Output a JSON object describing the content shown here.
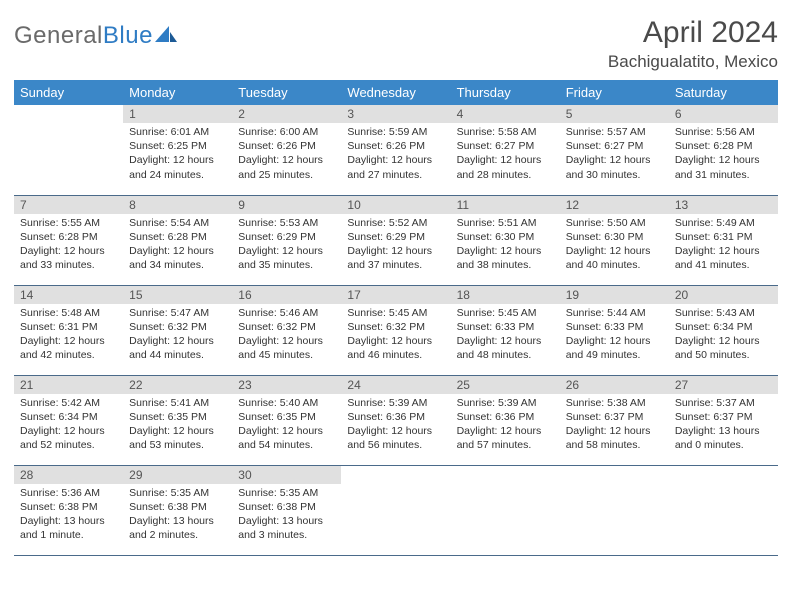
{
  "logo": {
    "text1": "General",
    "text2": "Blue"
  },
  "title": "April 2024",
  "subtitle": "Bachigualatito, Mexico",
  "colors": {
    "header_bg": "#3b87c8",
    "header_text": "#ffffff",
    "daynum_bg": "#e0e0e0",
    "daynum_text": "#555555",
    "cell_text": "#333333",
    "row_divider": "#4a6a8a",
    "brand_gray": "#6a6a6a",
    "brand_blue": "#2f7cc4",
    "title_color": "#4a4a4a",
    "background": "#ffffff"
  },
  "typography": {
    "title_fontsize": 30,
    "subtitle_fontsize": 17,
    "header_fontsize": 13,
    "daynum_fontsize": 12,
    "cell_fontsize": 10.5,
    "logo_fontsize": 24
  },
  "weekdays": [
    "Sunday",
    "Monday",
    "Tuesday",
    "Wednesday",
    "Thursday",
    "Friday",
    "Saturday"
  ],
  "weeks": [
    [
      null,
      {
        "d": "1",
        "sunrise": "Sunrise: 6:01 AM",
        "sunset": "Sunset: 6:25 PM",
        "daylight": "Daylight: 12 hours and 24 minutes."
      },
      {
        "d": "2",
        "sunrise": "Sunrise: 6:00 AM",
        "sunset": "Sunset: 6:26 PM",
        "daylight": "Daylight: 12 hours and 25 minutes."
      },
      {
        "d": "3",
        "sunrise": "Sunrise: 5:59 AM",
        "sunset": "Sunset: 6:26 PM",
        "daylight": "Daylight: 12 hours and 27 minutes."
      },
      {
        "d": "4",
        "sunrise": "Sunrise: 5:58 AM",
        "sunset": "Sunset: 6:27 PM",
        "daylight": "Daylight: 12 hours and 28 minutes."
      },
      {
        "d": "5",
        "sunrise": "Sunrise: 5:57 AM",
        "sunset": "Sunset: 6:27 PM",
        "daylight": "Daylight: 12 hours and 30 minutes."
      },
      {
        "d": "6",
        "sunrise": "Sunrise: 5:56 AM",
        "sunset": "Sunset: 6:28 PM",
        "daylight": "Daylight: 12 hours and 31 minutes."
      }
    ],
    [
      {
        "d": "7",
        "sunrise": "Sunrise: 5:55 AM",
        "sunset": "Sunset: 6:28 PM",
        "daylight": "Daylight: 12 hours and 33 minutes."
      },
      {
        "d": "8",
        "sunrise": "Sunrise: 5:54 AM",
        "sunset": "Sunset: 6:28 PM",
        "daylight": "Daylight: 12 hours and 34 minutes."
      },
      {
        "d": "9",
        "sunrise": "Sunrise: 5:53 AM",
        "sunset": "Sunset: 6:29 PM",
        "daylight": "Daylight: 12 hours and 35 minutes."
      },
      {
        "d": "10",
        "sunrise": "Sunrise: 5:52 AM",
        "sunset": "Sunset: 6:29 PM",
        "daylight": "Daylight: 12 hours and 37 minutes."
      },
      {
        "d": "11",
        "sunrise": "Sunrise: 5:51 AM",
        "sunset": "Sunset: 6:30 PM",
        "daylight": "Daylight: 12 hours and 38 minutes."
      },
      {
        "d": "12",
        "sunrise": "Sunrise: 5:50 AM",
        "sunset": "Sunset: 6:30 PM",
        "daylight": "Daylight: 12 hours and 40 minutes."
      },
      {
        "d": "13",
        "sunrise": "Sunrise: 5:49 AM",
        "sunset": "Sunset: 6:31 PM",
        "daylight": "Daylight: 12 hours and 41 minutes."
      }
    ],
    [
      {
        "d": "14",
        "sunrise": "Sunrise: 5:48 AM",
        "sunset": "Sunset: 6:31 PM",
        "daylight": "Daylight: 12 hours and 42 minutes."
      },
      {
        "d": "15",
        "sunrise": "Sunrise: 5:47 AM",
        "sunset": "Sunset: 6:32 PM",
        "daylight": "Daylight: 12 hours and 44 minutes."
      },
      {
        "d": "16",
        "sunrise": "Sunrise: 5:46 AM",
        "sunset": "Sunset: 6:32 PM",
        "daylight": "Daylight: 12 hours and 45 minutes."
      },
      {
        "d": "17",
        "sunrise": "Sunrise: 5:45 AM",
        "sunset": "Sunset: 6:32 PM",
        "daylight": "Daylight: 12 hours and 46 minutes."
      },
      {
        "d": "18",
        "sunrise": "Sunrise: 5:45 AM",
        "sunset": "Sunset: 6:33 PM",
        "daylight": "Daylight: 12 hours and 48 minutes."
      },
      {
        "d": "19",
        "sunrise": "Sunrise: 5:44 AM",
        "sunset": "Sunset: 6:33 PM",
        "daylight": "Daylight: 12 hours and 49 minutes."
      },
      {
        "d": "20",
        "sunrise": "Sunrise: 5:43 AM",
        "sunset": "Sunset: 6:34 PM",
        "daylight": "Daylight: 12 hours and 50 minutes."
      }
    ],
    [
      {
        "d": "21",
        "sunrise": "Sunrise: 5:42 AM",
        "sunset": "Sunset: 6:34 PM",
        "daylight": "Daylight: 12 hours and 52 minutes."
      },
      {
        "d": "22",
        "sunrise": "Sunrise: 5:41 AM",
        "sunset": "Sunset: 6:35 PM",
        "daylight": "Daylight: 12 hours and 53 minutes."
      },
      {
        "d": "23",
        "sunrise": "Sunrise: 5:40 AM",
        "sunset": "Sunset: 6:35 PM",
        "daylight": "Daylight: 12 hours and 54 minutes."
      },
      {
        "d": "24",
        "sunrise": "Sunrise: 5:39 AM",
        "sunset": "Sunset: 6:36 PM",
        "daylight": "Daylight: 12 hours and 56 minutes."
      },
      {
        "d": "25",
        "sunrise": "Sunrise: 5:39 AM",
        "sunset": "Sunset: 6:36 PM",
        "daylight": "Daylight: 12 hours and 57 minutes."
      },
      {
        "d": "26",
        "sunrise": "Sunrise: 5:38 AM",
        "sunset": "Sunset: 6:37 PM",
        "daylight": "Daylight: 12 hours and 58 minutes."
      },
      {
        "d": "27",
        "sunrise": "Sunrise: 5:37 AM",
        "sunset": "Sunset: 6:37 PM",
        "daylight": "Daylight: 13 hours and 0 minutes."
      }
    ],
    [
      {
        "d": "28",
        "sunrise": "Sunrise: 5:36 AM",
        "sunset": "Sunset: 6:38 PM",
        "daylight": "Daylight: 13 hours and 1 minute."
      },
      {
        "d": "29",
        "sunrise": "Sunrise: 5:35 AM",
        "sunset": "Sunset: 6:38 PM",
        "daylight": "Daylight: 13 hours and 2 minutes."
      },
      {
        "d": "30",
        "sunrise": "Sunrise: 5:35 AM",
        "sunset": "Sunset: 6:38 PM",
        "daylight": "Daylight: 13 hours and 3 minutes."
      },
      null,
      null,
      null,
      null
    ]
  ]
}
